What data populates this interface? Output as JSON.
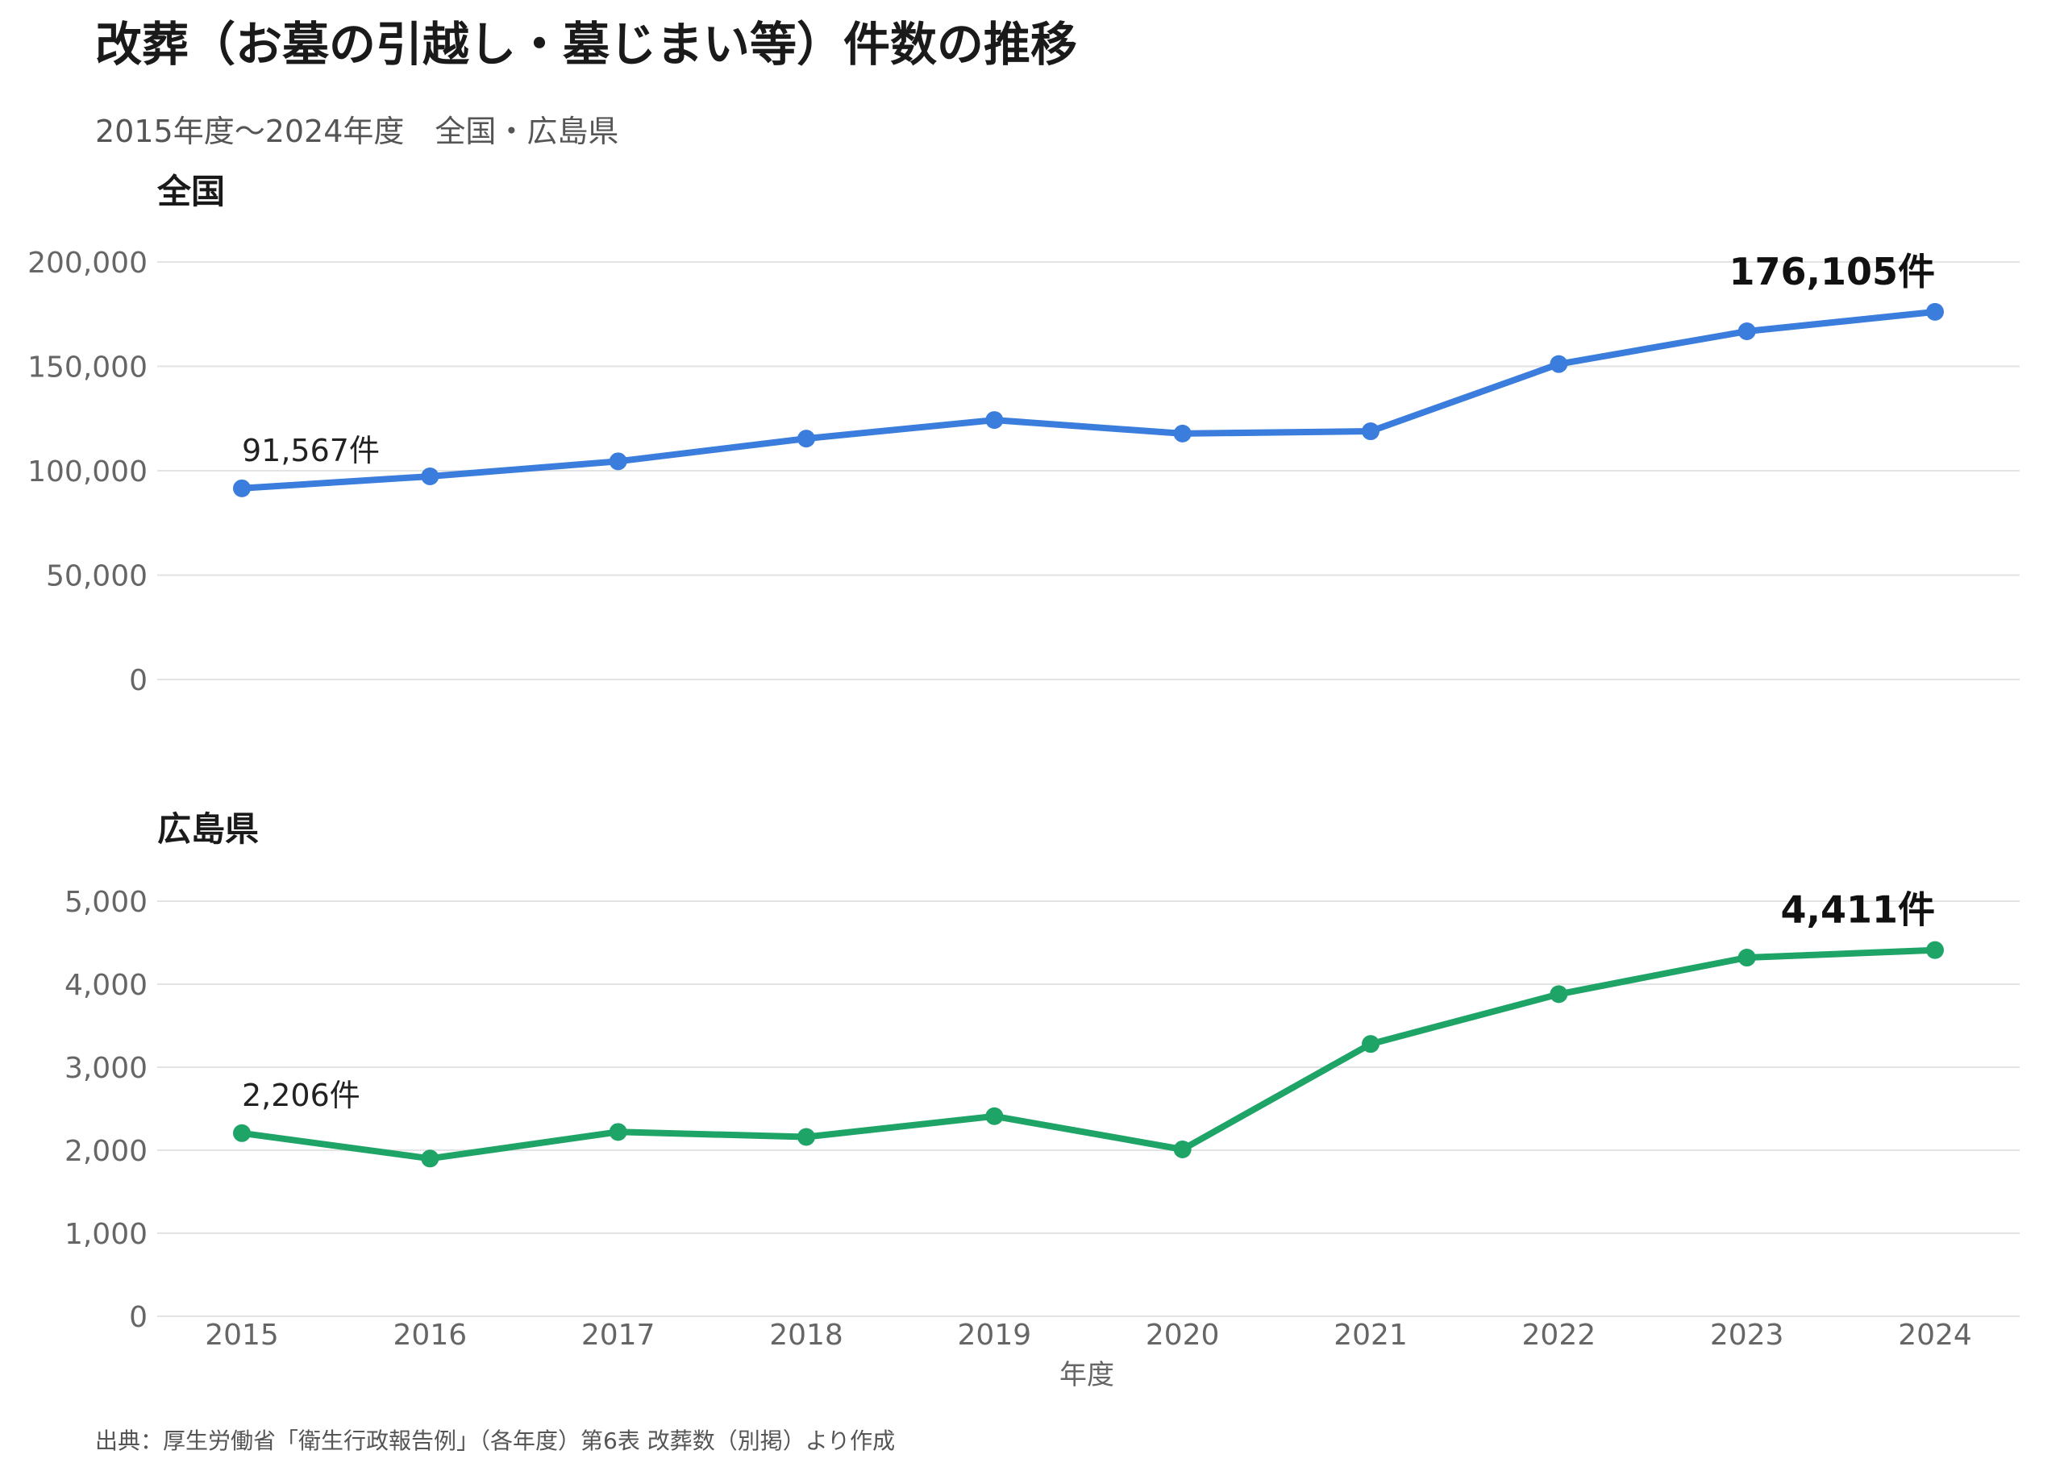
{
  "header": {
    "title": "改葬（お墓の引越し・墓じまい等）件数の推移",
    "subtitle": "2015年度〜2024年度　全国・広島県"
  },
  "footer": {
    "source": "出典：厚生労働省「衛生行政報告例」（各年度）第6表 改葬数（別掲）より作成"
  },
  "chart_data": [
    {
      "type": "line",
      "title": "全国",
      "x": [
        2015,
        2016,
        2017,
        2018,
        2019,
        2020,
        2021,
        2022,
        2023,
        2024
      ],
      "values": [
        91567,
        97300,
        104500,
        115400,
        124300,
        117800,
        118900,
        151100,
        166800,
        176105
      ],
      "ylim": [
        0,
        200000
      ],
      "yticks": [
        0,
        50000,
        100000,
        150000,
        200000
      ],
      "ytick_labels": [
        "0",
        "50,000",
        "100,000",
        "150,000",
        "200,000"
      ],
      "color": "#3b7ddd",
      "grid": true,
      "annotations": {
        "first": "91,567件",
        "last": "176,105件"
      }
    },
    {
      "type": "line",
      "title": "広島県",
      "x": [
        2015,
        2016,
        2017,
        2018,
        2019,
        2020,
        2021,
        2022,
        2023,
        2024
      ],
      "values": [
        2206,
        1900,
        2220,
        2160,
        2410,
        2010,
        3280,
        3880,
        4320,
        4411
      ],
      "ylim": [
        0,
        5000
      ],
      "yticks": [
        0,
        1000,
        2000,
        3000,
        4000,
        5000
      ],
      "ytick_labels": [
        "0",
        "1,000",
        "2,000",
        "3,000",
        "4,000",
        "5,000"
      ],
      "color": "#1ea467",
      "grid": true,
      "annotations": {
        "first": "2,206件",
        "last": "4,411件"
      }
    }
  ],
  "x_axis": {
    "tick_labels": [
      "2015",
      "2016",
      "2017",
      "2018",
      "2019",
      "2020",
      "2021",
      "2022",
      "2023",
      "2024"
    ],
    "label": "年度"
  }
}
